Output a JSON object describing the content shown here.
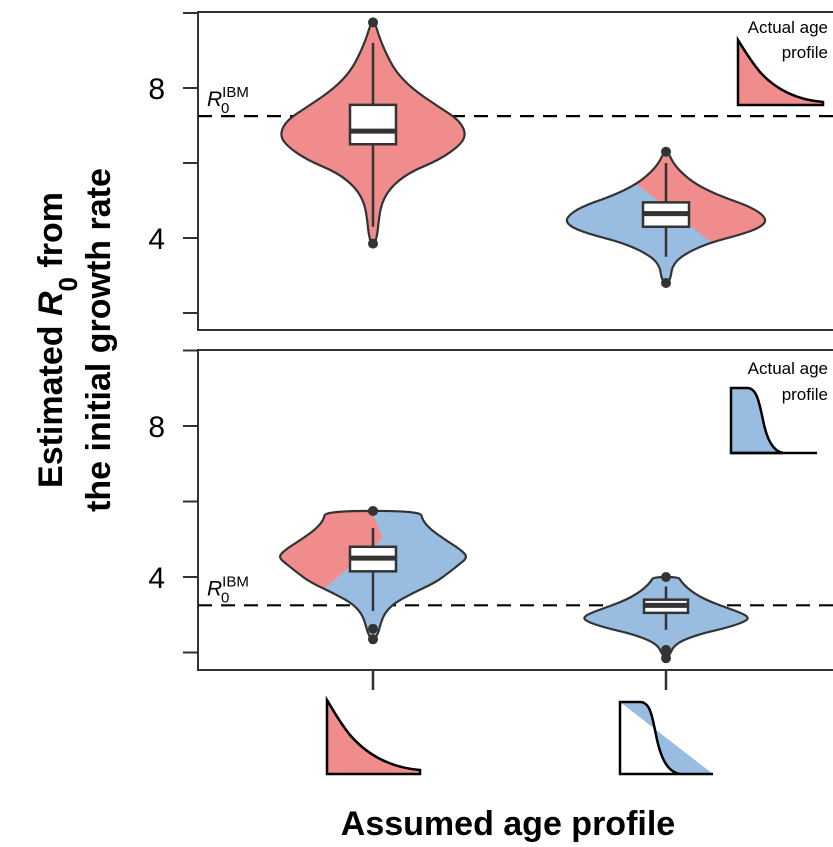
{
  "chart_data": {
    "type": "violin",
    "ylabel_line1_prefix": "Estimated ",
    "ylabel_symbol": "R",
    "ylabel_symbol_sub": "0",
    "ylabel_line1_suffix": " from",
    "ylabel_line2": "the initial growth rate",
    "xlabel": "Assumed age profile",
    "x_categories": [
      "decreasing-age-profile",
      "plateau-age-profile"
    ],
    "colors": {
      "red": "#f08c8c",
      "blue": "#98bde0",
      "outline": "#333333"
    },
    "panels": [
      {
        "ylim": [
          1.8,
          10.2
        ],
        "yticks": [
          8,
          4
        ],
        "actual_profile_label_line1": "Actual age",
        "actual_profile_label_line2": "profile",
        "actual_profile_shape": "decreasing",
        "reference_label": "R",
        "reference_label_sub": "0",
        "reference_label_sup": "IBM",
        "reference_value": 7.25,
        "violins": [
          {
            "category": 0,
            "min": 3.85,
            "max": 9.75,
            "q1": 6.5,
            "median": 6.85,
            "q3": 7.55,
            "whisker_low": 4.3,
            "whisker_high": 9.2,
            "fill": "red"
          },
          {
            "category": 1,
            "min": 2.8,
            "max": 6.3,
            "q1": 4.3,
            "median": 4.65,
            "q3": 4.95,
            "whisker_low": 3.5,
            "whisker_high": 6.0,
            "fill": "split-blue-red"
          }
        ]
      },
      {
        "ylim": [
          1.8,
          10.2
        ],
        "yticks": [
          8,
          4
        ],
        "actual_profile_label_line1": "Actual age",
        "actual_profile_label_line2": "profile",
        "actual_profile_shape": "plateau",
        "reference_label": "R",
        "reference_label_sub": "0",
        "reference_label_sup": "IBM",
        "reference_value": 3.25,
        "violins": [
          {
            "category": 0,
            "min": 2.35,
            "max": 5.75,
            "q1": 4.15,
            "median": 4.5,
            "q3": 4.8,
            "whisker_low": 3.1,
            "whisker_high": 5.3,
            "fill": "split-red-blue"
          },
          {
            "category": 1,
            "min": 1.85,
            "max": 4.0,
            "q1": 3.05,
            "median": 3.25,
            "q3": 3.4,
            "whisker_low": 2.6,
            "whisker_high": 3.75,
            "fill": "blue"
          }
        ]
      }
    ]
  }
}
